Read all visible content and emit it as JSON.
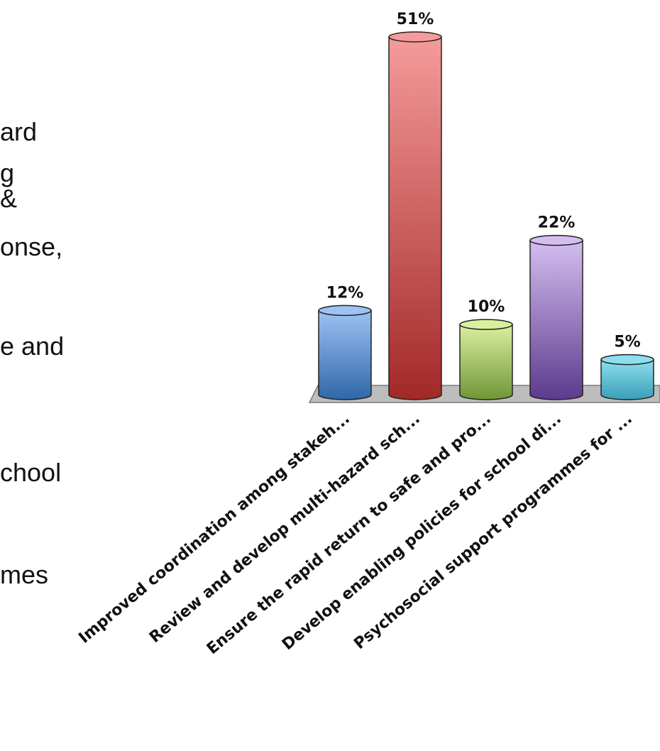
{
  "slide_text_fragments": [
    "ard",
    "g",
    "&",
    "onse,",
    "e and",
    "chool",
    "mes"
  ],
  "chart_data": {
    "type": "bar",
    "title": "",
    "xlabel": "",
    "ylabel": "",
    "ylim": [
      0,
      55
    ],
    "grid": false,
    "legend": "none",
    "categories": [
      "Improved coordination among stakeh...",
      "Review and develop multi-hazard sch...",
      "Ensure the rapid return to safe and pro...",
      "Develop enabling policies for school di...",
      "Psychosocial support programmes for ..."
    ],
    "values": [
      12,
      51,
      10,
      22,
      5
    ],
    "value_labels": [
      "12%",
      "51%",
      "10%",
      "22%",
      "5%"
    ],
    "colors": [
      {
        "light": "#9cc3f3",
        "dark": "#2f67a8"
      },
      {
        "light": "#f59b9b",
        "dark": "#a32828"
      },
      {
        "light": "#dcef9f",
        "dark": "#6f9636"
      },
      {
        "light": "#d4bef0",
        "dark": "#5c3a8d"
      },
      {
        "light": "#8ddfee",
        "dark": "#3a9fb8"
      }
    ]
  }
}
